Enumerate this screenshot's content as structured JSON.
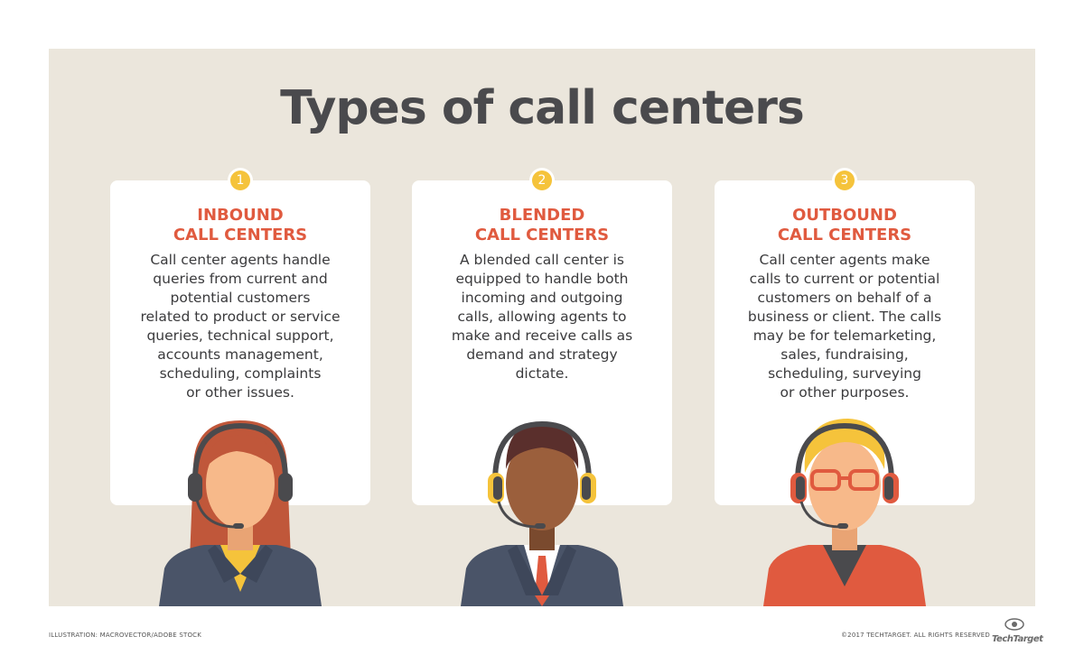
{
  "title": "Types of call centers",
  "cards": [
    {
      "number": "1",
      "title_line1": "INBOUND",
      "title_line2": "CALL CENTERS",
      "body": "Call center agents handle\nqueries from current and\npotential customers\nrelated to product or service\nqueries, technical support,\naccounts management,\nscheduling, complaints\nor other issues."
    },
    {
      "number": "2",
      "title_line1": "BLENDED",
      "title_line2": "CALL CENTERS",
      "body": "A blended call center is\nequipped to handle both\nincoming and outgoing\ncalls, allowing agents to\nmake and receive calls as\ndemand and strategy\ndictate."
    },
    {
      "number": "3",
      "title_line1": "OUTBOUND",
      "title_line2": "CALL CENTERS",
      "body": "Call center agents make\ncalls to current or potential\ncustomers on behalf of a\nbusiness or client. The calls\nmay be for telemarketing,\nsales, fundraising,\nscheduling, surveying\nor other purposes."
    }
  ],
  "footer": {
    "credit": "ILLUSTRATION: MACROVECTOR/ADOBE STOCK",
    "copyright": "©2017 TECHTARGET. ALL RIGHTS RESERVED",
    "logo_text": "TechTarget"
  },
  "colors": {
    "background_panel": "#ebe6dc",
    "title": "#4a4a4d",
    "card_heading": "#e05a3f",
    "badge": "#f5c33b"
  },
  "icons": [
    "agent-woman-illustration",
    "agent-man-illustration",
    "agent-blond-man-illustration",
    "techtarget-logo-icon"
  ]
}
